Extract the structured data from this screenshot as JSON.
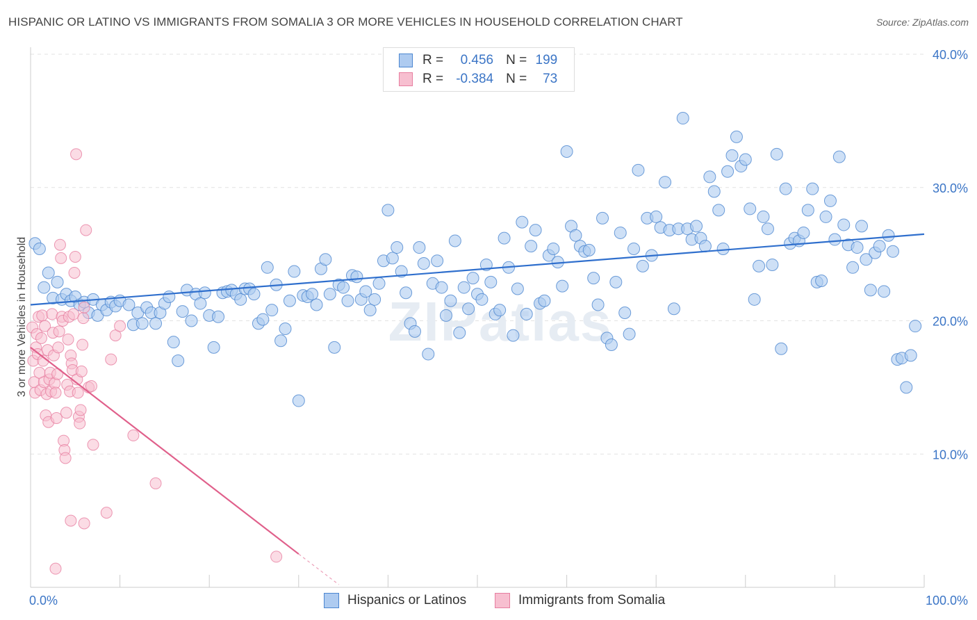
{
  "header": {
    "title": "HISPANIC OR LATINO VS IMMIGRANTS FROM SOMALIA 3 OR MORE VEHICLES IN HOUSEHOLD CORRELATION CHART",
    "source": "Source: ZipAtlas.com"
  },
  "watermark": "ZIPatlas",
  "legend": {
    "r_label": "R =",
    "n_label": "N =",
    "entries": [
      {
        "r": "0.456",
        "n": "199"
      },
      {
        "r": "-0.384",
        "n": "73"
      }
    ]
  },
  "colors": {
    "blue_fill": "#aecbf0",
    "blue_stroke": "#4b86d0",
    "blue_line": "#2f6fcd",
    "pink_fill": "#f7bfd0",
    "pink_stroke": "#e77ea0",
    "pink_line": "#e0608b",
    "tick_label": "#3b75c6",
    "grid": "#e2e2e2"
  },
  "chart_data": {
    "type": "scatter",
    "title": "HISPANIC OR LATINO VS IMMIGRANTS FROM SOMALIA 3 OR MORE VEHICLES IN HOUSEHOLD CORRELATION CHART",
    "xlabel": "",
    "ylabel": "3 or more Vehicles in Household",
    "x_tick_labels": [
      "0.0%",
      "100.0%"
    ],
    "y_tick_labels": [
      "10.0%",
      "20.0%",
      "30.0%",
      "40.0%"
    ],
    "y_ticks": [
      10,
      20,
      30,
      40
    ],
    "xlim": [
      0,
      100
    ],
    "ylim": [
      0,
      40
    ],
    "grid": true,
    "legend_position": "top-center",
    "series": [
      {
        "name": "Hispanics or Latinos",
        "R": 0.456,
        "N": 199,
        "trend": {
          "x": [
            0,
            100
          ],
          "y": [
            21.2,
            26.5
          ]
        },
        "points": [
          [
            0.5,
            25.8
          ],
          [
            1,
            25.4
          ],
          [
            1.5,
            22.5
          ],
          [
            2,
            23.6
          ],
          [
            2.5,
            21.7
          ],
          [
            3,
            22.9
          ],
          [
            3.5,
            21.6
          ],
          [
            4,
            22.0
          ],
          [
            4.5,
            21.5
          ],
          [
            5,
            21.8
          ],
          [
            5.5,
            21.2
          ],
          [
            6,
            21.4
          ],
          [
            6.5,
            20.6
          ],
          [
            7,
            21.6
          ],
          [
            7.5,
            20.4
          ],
          [
            8,
            21.2
          ],
          [
            8.5,
            20.8
          ],
          [
            9,
            21.4
          ],
          [
            9.5,
            21.1
          ],
          [
            10,
            21.5
          ],
          [
            11,
            21.2
          ],
          [
            11.5,
            19.7
          ],
          [
            12,
            20.6
          ],
          [
            12.5,
            19.8
          ],
          [
            13,
            21.0
          ],
          [
            13.5,
            20.6
          ],
          [
            14,
            19.8
          ],
          [
            14.5,
            20.6
          ],
          [
            15,
            21.3
          ],
          [
            15.5,
            21.8
          ],
          [
            16,
            18.4
          ],
          [
            16.5,
            17.0
          ],
          [
            17,
            20.7
          ],
          [
            17.5,
            22.3
          ],
          [
            18,
            20.0
          ],
          [
            18.5,
            22.0
          ],
          [
            19,
            21.3
          ],
          [
            19.5,
            22.1
          ],
          [
            20,
            20.4
          ],
          [
            20.5,
            18.0
          ],
          [
            21,
            20.3
          ],
          [
            21.5,
            22.1
          ],
          [
            22,
            22.2
          ],
          [
            22.5,
            22.3
          ],
          [
            23,
            22.0
          ],
          [
            23.5,
            21.6
          ],
          [
            24,
            22.4
          ],
          [
            24.5,
            22.4
          ],
          [
            25,
            22.0
          ],
          [
            25.5,
            19.8
          ],
          [
            26,
            20.1
          ],
          [
            26.5,
            24.0
          ],
          [
            27,
            20.8
          ],
          [
            27.5,
            22.7
          ],
          [
            28,
            18.5
          ],
          [
            28.5,
            19.4
          ],
          [
            29,
            21.5
          ],
          [
            29.5,
            23.7
          ],
          [
            30,
            14.0
          ],
          [
            30.5,
            21.9
          ],
          [
            31,
            21.8
          ],
          [
            31.5,
            22.0
          ],
          [
            32,
            21.2
          ],
          [
            32.5,
            23.9
          ],
          [
            33,
            24.6
          ],
          [
            33.5,
            22.0
          ],
          [
            34,
            18.0
          ],
          [
            34.5,
            22.7
          ],
          [
            35,
            22.5
          ],
          [
            35.5,
            21.5
          ],
          [
            36,
            23.4
          ],
          [
            36.5,
            23.3
          ],
          [
            37,
            21.6
          ],
          [
            37.5,
            22.2
          ],
          [
            38,
            20.8
          ],
          [
            38.5,
            21.6
          ],
          [
            39,
            22.8
          ],
          [
            39.5,
            24.5
          ],
          [
            40,
            28.3
          ],
          [
            40.5,
            24.7
          ],
          [
            41,
            25.5
          ],
          [
            41.5,
            23.7
          ],
          [
            42,
            22.1
          ],
          [
            42.5,
            19.8
          ],
          [
            43,
            19.2
          ],
          [
            43.5,
            25.5
          ],
          [
            44,
            24.3
          ],
          [
            44.5,
            17.5
          ],
          [
            45,
            22.8
          ],
          [
            45.5,
            24.5
          ],
          [
            46,
            22.5
          ],
          [
            46.5,
            20.4
          ],
          [
            47,
            21.5
          ],
          [
            47.5,
            26.0
          ],
          [
            48,
            19.1
          ],
          [
            48.5,
            22.5
          ],
          [
            49,
            20.9
          ],
          [
            49.5,
            23.2
          ],
          [
            50,
            22.0
          ],
          [
            50.5,
            21.6
          ],
          [
            51,
            24.2
          ],
          [
            51.5,
            22.9
          ],
          [
            52,
            20.5
          ],
          [
            52.5,
            20.8
          ],
          [
            53,
            26.2
          ],
          [
            53.5,
            24.0
          ],
          [
            54,
            18.9
          ],
          [
            54.5,
            22.4
          ],
          [
            55,
            27.4
          ],
          [
            55.5,
            20.5
          ],
          [
            56,
            25.6
          ],
          [
            56.5,
            26.8
          ],
          [
            57,
            21.3
          ],
          [
            57.5,
            21.5
          ],
          [
            58,
            24.9
          ],
          [
            58.5,
            25.4
          ],
          [
            59,
            24.4
          ],
          [
            59.5,
            22.6
          ],
          [
            60,
            32.7
          ],
          [
            60.5,
            27.1
          ],
          [
            61,
            26.4
          ],
          [
            61.5,
            25.6
          ],
          [
            62,
            25.2
          ],
          [
            62.5,
            25.3
          ],
          [
            63,
            23.2
          ],
          [
            63.5,
            21.2
          ],
          [
            64,
            27.7
          ],
          [
            64.5,
            18.7
          ],
          [
            65,
            18.2
          ],
          [
            65.5,
            22.9
          ],
          [
            66,
            26.6
          ],
          [
            66.5,
            20.6
          ],
          [
            67,
            19.0
          ],
          [
            67.5,
            25.4
          ],
          [
            68,
            31.3
          ],
          [
            68.5,
            24.1
          ],
          [
            69,
            27.7
          ],
          [
            69.5,
            24.9
          ],
          [
            70,
            27.8
          ],
          [
            70.5,
            27.0
          ],
          [
            71,
            30.4
          ],
          [
            71.5,
            26.8
          ],
          [
            72,
            20.9
          ],
          [
            72.5,
            26.9
          ],
          [
            73,
            35.2
          ],
          [
            73.5,
            26.9
          ],
          [
            74,
            26.1
          ],
          [
            74.5,
            27.1
          ],
          [
            75,
            26.2
          ],
          [
            75.5,
            25.6
          ],
          [
            76,
            30.8
          ],
          [
            76.5,
            29.7
          ],
          [
            77,
            28.3
          ],
          [
            77.5,
            25.4
          ],
          [
            78,
            31.2
          ],
          [
            78.5,
            32.4
          ],
          [
            79,
            33.8
          ],
          [
            79.5,
            31.6
          ],
          [
            80,
            32.1
          ],
          [
            80.5,
            28.4
          ],
          [
            81,
            21.6
          ],
          [
            81.5,
            24.1
          ],
          [
            82,
            27.8
          ],
          [
            82.5,
            26.9
          ],
          [
            83,
            24.2
          ],
          [
            83.5,
            32.5
          ],
          [
            84,
            17.9
          ],
          [
            84.5,
            29.9
          ],
          [
            85,
            25.8
          ],
          [
            85.5,
            26.2
          ],
          [
            86,
            26.0
          ],
          [
            86.5,
            26.6
          ],
          [
            87,
            28.3
          ],
          [
            87.5,
            29.9
          ],
          [
            88,
            22.9
          ],
          [
            88.5,
            23.0
          ],
          [
            89,
            27.8
          ],
          [
            89.5,
            29.0
          ],
          [
            90,
            26.1
          ],
          [
            90.5,
            32.3
          ],
          [
            91,
            27.2
          ],
          [
            91.5,
            25.7
          ],
          [
            92,
            24.0
          ],
          [
            92.5,
            25.5
          ],
          [
            93,
            27.1
          ],
          [
            93.5,
            24.6
          ],
          [
            94,
            22.3
          ],
          [
            94.5,
            25.1
          ],
          [
            95,
            25.6
          ],
          [
            95.5,
            22.2
          ],
          [
            96,
            26.4
          ],
          [
            96.5,
            25.2
          ],
          [
            97,
            17.1
          ],
          [
            97.5,
            17.2
          ],
          [
            98,
            15.0
          ],
          [
            98.5,
            17.4
          ],
          [
            99,
            19.6
          ]
        ]
      },
      {
        "name": "Immigrants from Somalia",
        "R": -0.384,
        "N": 73,
        "trend": {
          "x": [
            0,
            30
          ],
          "y": [
            18.0,
            2.5
          ]
        },
        "trend_dashed": {
          "x": [
            30,
            34.5
          ],
          "y": [
            2.5,
            0.2
          ]
        },
        "points": [
          [
            0.2,
            19.5
          ],
          [
            0.3,
            17.0
          ],
          [
            0.4,
            15.4
          ],
          [
            0.5,
            14.6
          ],
          [
            0.6,
            18.0
          ],
          [
            0.7,
            19.0
          ],
          [
            0.8,
            17.5
          ],
          [
            0.9,
            20.3
          ],
          [
            1.0,
            16.1
          ],
          [
            1.1,
            14.8
          ],
          [
            1.2,
            18.7
          ],
          [
            1.3,
            20.4
          ],
          [
            1.4,
            17.0
          ],
          [
            1.5,
            15.4
          ],
          [
            1.6,
            19.6
          ],
          [
            1.7,
            12.9
          ],
          [
            1.8,
            14.5
          ],
          [
            1.9,
            17.8
          ],
          [
            2.0,
            12.4
          ],
          [
            2.1,
            15.6
          ],
          [
            2.2,
            16.1
          ],
          [
            2.3,
            14.7
          ],
          [
            2.4,
            20.5
          ],
          [
            2.5,
            19.1
          ],
          [
            2.6,
            17.4
          ],
          [
            2.7,
            15.3
          ],
          [
            2.8,
            14.6
          ],
          [
            2.9,
            12.7
          ],
          [
            3.0,
            16.0
          ],
          [
            3.1,
            18.0
          ],
          [
            3.2,
            19.2
          ],
          [
            3.3,
            25.7
          ],
          [
            3.4,
            24.7
          ],
          [
            3.5,
            20.3
          ],
          [
            3.6,
            20.0
          ],
          [
            3.7,
            11.0
          ],
          [
            3.8,
            10.3
          ],
          [
            3.9,
            9.7
          ],
          [
            4.0,
            13.1
          ],
          [
            4.1,
            15.2
          ],
          [
            4.2,
            18.6
          ],
          [
            4.3,
            20.3
          ],
          [
            4.4,
            14.7
          ],
          [
            4.5,
            17.4
          ],
          [
            4.6,
            16.8
          ],
          [
            4.7,
            16.3
          ],
          [
            4.8,
            20.5
          ],
          [
            4.9,
            23.6
          ],
          [
            5.0,
            24.8
          ],
          [
            5.1,
            32.5
          ],
          [
            5.2,
            15.6
          ],
          [
            5.3,
            14.6
          ],
          [
            5.4,
            12.8
          ],
          [
            5.5,
            12.3
          ],
          [
            5.6,
            13.3
          ],
          [
            5.7,
            16.2
          ],
          [
            5.8,
            18.2
          ],
          [
            5.9,
            20.2
          ],
          [
            6.0,
            21.0
          ],
          [
            6.2,
            26.8
          ],
          [
            6.5,
            15.0
          ],
          [
            6.8,
            15.1
          ],
          [
            7.0,
            10.7
          ],
          [
            2.8,
            1.4
          ],
          [
            4.5,
            5.0
          ],
          [
            6.0,
            4.8
          ],
          [
            9.0,
            17.1
          ],
          [
            8.5,
            5.6
          ],
          [
            9.5,
            18.9
          ],
          [
            10.0,
            19.6
          ],
          [
            11.5,
            11.4
          ],
          [
            14.0,
            7.8
          ],
          [
            27.5,
            2.3
          ]
        ]
      }
    ]
  }
}
